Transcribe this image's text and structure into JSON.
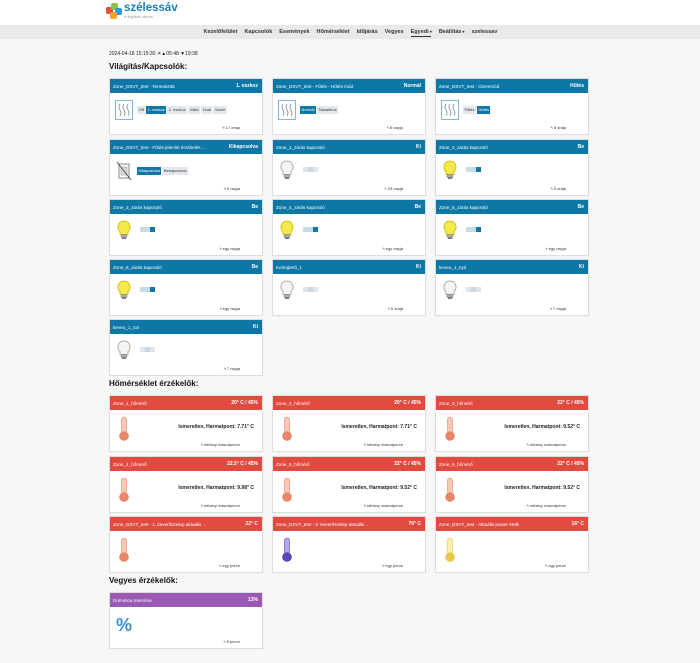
{
  "brand": {
    "name": "szélessáv",
    "tagline": "a digitális otthon"
  },
  "nav": [
    {
      "label": "Kezelőfelület",
      "caret": false
    },
    {
      "label": "Kapcsolók",
      "caret": false
    },
    {
      "label": "Események",
      "caret": false
    },
    {
      "label": "Hőmérséklet",
      "caret": false
    },
    {
      "label": "Időjárás",
      "caret": false
    },
    {
      "label": "Vegyes",
      "caret": false
    },
    {
      "label": "Egyedi",
      "caret": true
    },
    {
      "label": "Beállítás",
      "caret": true
    },
    {
      "label": "szelessav",
      "caret": false
    }
  ],
  "datetime": "2024-04-18 15:15:30 ☀▲05:48 ▼19:38",
  "sections": {
    "lights": "Világítás/Kapcsolók:",
    "temps": "Hőmérséklet érzékelők:",
    "misc": "Vegyes érzékelők:"
  },
  "thermostats": [
    {
      "name": "Zone_DSVT_test - Termosztát",
      "state": "1. eszkoz",
      "ago": "17 órája",
      "modes": [
        {
          "label": "Off",
          "selected": false
        },
        {
          "label": "1. eszkoz",
          "selected": true
        },
        {
          "label": "2. eszkoz",
          "selected": false
        },
        {
          "label": "Váltó",
          "selected": false
        },
        {
          "label": "Dual",
          "selected": false
        },
        {
          "label": "Saver",
          "selected": false
        }
      ]
    },
    {
      "name": "Zone_DSVT_test - Fűtés - Hűtés mód",
      "state": "Normál",
      "ago": "6 napja",
      "modes": [
        {
          "label": "Normál",
          "selected": true
        },
        {
          "label": "Takarékos",
          "selected": false
        }
      ]
    },
    {
      "name": "Zone_DSVT_test - Üzemmód",
      "state": "Hűtés",
      "ago": "5 órája",
      "modes": [
        {
          "label": "Fűtés",
          "selected": false
        },
        {
          "label": "Hűtés",
          "selected": true
        }
      ]
    },
    {
      "name": "Zone_DSVT_test - Fűtés jelenlét érzékelés ...",
      "state": "Kikapcsolva",
      "ago": "6 napja",
      "modes": [
        {
          "label": "Kikapcsolva",
          "selected": true
        },
        {
          "label": "Bekapcsolva",
          "selected": false
        }
      ]
    }
  ],
  "switches": [
    {
      "name": "Zone_1_zárás kapcsoló",
      "state": "Ki",
      "ago": "25 napja",
      "on": false
    },
    {
      "name": "Zone_2_zárás kapcsoló",
      "state": "Be",
      "ago": "5 órája",
      "on": true
    },
    {
      "name": "Zone_3_zárás kapcsoló",
      "state": "Be",
      "ago": "egy napja",
      "on": true
    },
    {
      "name": "Zone_4_zárás kapcsoló",
      "state": "Be",
      "ago": "egy napja",
      "on": true
    },
    {
      "name": "Zone_5_zárás kapcsoló",
      "state": "Be",
      "ago": "egy napja",
      "on": true
    },
    {
      "name": "Zone_6_zárás kapcsoló",
      "state": "Be",
      "ago": "egy napja",
      "on": true
    },
    {
      "name": "Keringtető_1",
      "state": "Ki",
      "ago": "5 órája",
      "on": false
    },
    {
      "name": "keveo_1_nyit",
      "state": "Ki",
      "ago": "7 napja",
      "on": false
    },
    {
      "name": "keveo_1_zar",
      "state": "Ki",
      "ago": "7 napja",
      "on": false
    }
  ],
  "temperatures": [
    {
      "name": "Zone_1_hőmérő",
      "state": "20° C / 45%",
      "text": "Ismeretlen, Harmatpont: 7.71° C",
      "ago": "néhány másodperce",
      "tone": "warm"
    },
    {
      "name": "Zone_2_hőmérő",
      "state": "20° C / 45%",
      "text": "Ismeretlen, Harmatpont: 7.71° C",
      "ago": "néhány másodperce",
      "tone": "warm"
    },
    {
      "name": "Zone_3_hőmérő",
      "state": "22° C / 45%",
      "text": "Ismeretlen, Harmatpont: 9.52° C",
      "ago": "néhány másodperce",
      "tone": "warm"
    },
    {
      "name": "Zone_4_hőmérő",
      "state": "22.5° C / 45%",
      "text": "Ismeretlen, Harmatpont: 9.98° C",
      "ago": "néhány másodperce",
      "tone": "warm"
    },
    {
      "name": "Zone_5_hőmérő",
      "state": "22° C / 45%",
      "text": "Ismeretlen, Harmatpont: 9.52° C",
      "ago": "néhány másodperce",
      "tone": "warm"
    },
    {
      "name": "Zone_6_hőmérő",
      "state": "22° C / 45%",
      "text": "Ismeretlen, Harmatpont: 9.52° C",
      "ago": "néhány másodperce",
      "tone": "warm"
    },
    {
      "name": "Zone_DSVT_test - 1. keverőszelep aktuális ...",
      "state": "22° C",
      "text": "",
      "ago": "egy perce",
      "tone": "warm"
    },
    {
      "name": "Zone_DSVT_test - 2. keverőszelep aktuális ...",
      "state": "70° C",
      "text": "",
      "ago": "egy perce",
      "tone": "purple"
    },
    {
      "name": "Zone_DSVT_test - Aktuális power érték",
      "state": "16° C",
      "text": "",
      "ago": "egy perce",
      "tone": "yellow"
    }
  ],
  "misc": [
    {
      "name": "Domotica memória",
      "state": "13%",
      "ago": "6 perce"
    }
  ],
  "colors": {
    "header_blue": "#0e77a6",
    "header_red": "#e04a3f",
    "header_purple": "#9b59b6",
    "bulb_on": "#f4e94a"
  }
}
